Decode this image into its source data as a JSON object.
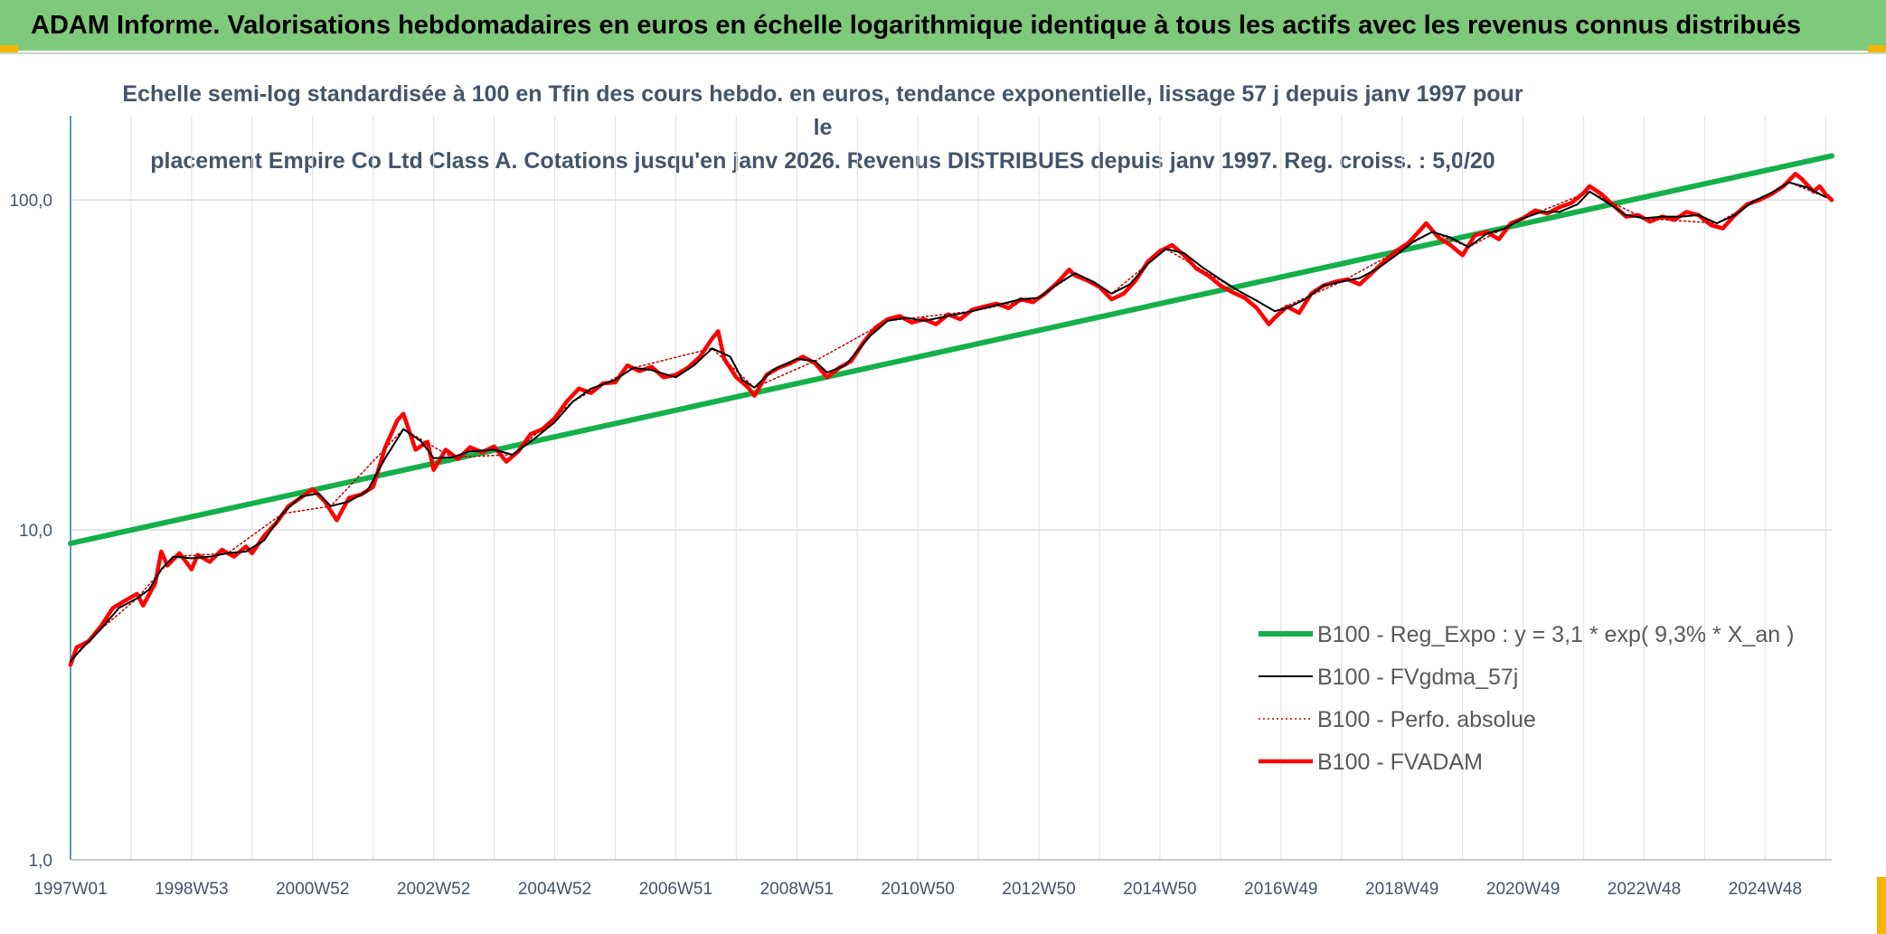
{
  "header": {
    "title": "ADAM Informe. Valorisations hebdomadaires en euros en échelle logarithmique identique à tous les actifs avec les revenus connus distribués"
  },
  "chart_data": {
    "type": "line",
    "subtitle_lines": [
      "Echelle semi-log standardisée à 100 en Tfin des cours hebdo. en euros, tendance exponentielle, lissage 57 j depuis janv 1997 pour le",
      "placement Empire Co Ltd Class A. Cotations jusqu'en janv 2026. Revenus DISTRIBUES depuis janv 1997. Reg. croiss. : 5,0/20"
    ],
    "y_scale": "log",
    "ylim": [
      1,
      180
    ],
    "y_ticks": [
      "1,0",
      "10,0",
      "100,0"
    ],
    "y_tick_values": [
      1,
      10,
      100
    ],
    "xlim": [
      1997.0,
      2026.1
    ],
    "x_ticks": [
      "1997W01",
      "1998W53",
      "2000W52",
      "2002W52",
      "2004W52",
      "2006W51",
      "2008W51",
      "2010W50",
      "2012W50",
      "2014W50",
      "2016W49",
      "2018W49",
      "2020W49",
      "2022W48",
      "2024W48"
    ],
    "x_tick_values": [
      1997.0,
      1999.0,
      2001.0,
      2003.0,
      2005.0,
      2007.0,
      2009.0,
      2011.0,
      2013.0,
      2015.0,
      2017.0,
      2019.0,
      2021.0,
      2023.0,
      2025.0
    ],
    "grid": true,
    "legend_placement": "bottom-right",
    "series": [
      {
        "name": "B100 - Reg_Expo : y = 3,1 * exp( 9,3% *  X_an )",
        "color": "#14b04a",
        "style": "solid-thick",
        "points": [
          [
            1997.0,
            9.1
          ],
          [
            2026.1,
            136
          ]
        ]
      },
      {
        "name": "B100 - FVgdma_57j",
        "color": "#000000",
        "style": "solid-thin",
        "points": [
          [
            1997.0,
            4.0
          ],
          [
            1997.2,
            4.4
          ],
          [
            1997.5,
            5.0
          ],
          [
            1997.8,
            5.8
          ],
          [
            1998.1,
            6.2
          ],
          [
            1998.3,
            6.6
          ],
          [
            1998.5,
            7.6
          ],
          [
            1998.7,
            8.3
          ],
          [
            1999.0,
            8.2
          ],
          [
            1999.3,
            8.3
          ],
          [
            1999.6,
            8.5
          ],
          [
            1999.9,
            8.6
          ],
          [
            2000.2,
            9.3
          ],
          [
            2000.5,
            11.2
          ],
          [
            2000.8,
            12.6
          ],
          [
            2001.1,
            12.9
          ],
          [
            2001.3,
            11.8
          ],
          [
            2001.6,
            12.2
          ],
          [
            2001.9,
            13.1
          ],
          [
            2002.2,
            16.5
          ],
          [
            2002.5,
            20.2
          ],
          [
            2002.8,
            18.5
          ],
          [
            2003.0,
            16.5
          ],
          [
            2003.3,
            16.6
          ],
          [
            2003.6,
            17.3
          ],
          [
            2004.0,
            17.5
          ],
          [
            2004.3,
            16.9
          ],
          [
            2004.6,
            18.5
          ],
          [
            2005.0,
            21.2
          ],
          [
            2005.3,
            24.5
          ],
          [
            2005.6,
            26.8
          ],
          [
            2006.0,
            28.5
          ],
          [
            2006.3,
            31.0
          ],
          [
            2006.6,
            30.5
          ],
          [
            2007.0,
            29.0
          ],
          [
            2007.3,
            31.5
          ],
          [
            2007.6,
            35.5
          ],
          [
            2007.9,
            33.5
          ],
          [
            2008.1,
            28.5
          ],
          [
            2008.3,
            27.0
          ],
          [
            2008.6,
            30.5
          ],
          [
            2009.0,
            33.0
          ],
          [
            2009.3,
            32.5
          ],
          [
            2009.5,
            30.0
          ],
          [
            2009.8,
            31.5
          ],
          [
            2010.2,
            38.5
          ],
          [
            2010.5,
            43.0
          ],
          [
            2010.8,
            44.0
          ],
          [
            2011.1,
            43.0
          ],
          [
            2011.5,
            44.5
          ],
          [
            2011.9,
            46.0
          ],
          [
            2012.3,
            48.0
          ],
          [
            2012.7,
            50.0
          ],
          [
            2013.0,
            50.5
          ],
          [
            2013.3,
            55.5
          ],
          [
            2013.6,
            60.0
          ],
          [
            2013.9,
            56.5
          ],
          [
            2014.2,
            52.0
          ],
          [
            2014.5,
            55.5
          ],
          [
            2014.8,
            64.0
          ],
          [
            2015.1,
            71.0
          ],
          [
            2015.4,
            69.0
          ],
          [
            2015.7,
            62.5
          ],
          [
            2016.0,
            57.5
          ],
          [
            2016.3,
            53.0
          ],
          [
            2016.6,
            49.5
          ],
          [
            2016.9,
            46.0
          ],
          [
            2017.1,
            47.0
          ],
          [
            2017.4,
            50.0
          ],
          [
            2017.7,
            55.0
          ],
          [
            2018.0,
            56.5
          ],
          [
            2018.3,
            58.0
          ],
          [
            2018.6,
            62.0
          ],
          [
            2018.9,
            68.0
          ],
          [
            2019.2,
            75.0
          ],
          [
            2019.5,
            80.0
          ],
          [
            2019.8,
            77.0
          ],
          [
            2020.1,
            72.0
          ],
          [
            2020.4,
            79.0
          ],
          [
            2020.7,
            82.0
          ],
          [
            2021.0,
            88.0
          ],
          [
            2021.3,
            92.0
          ],
          [
            2021.6,
            92.0
          ],
          [
            2021.9,
            97.0
          ],
          [
            2022.1,
            106.0
          ],
          [
            2022.4,
            98.0
          ],
          [
            2022.7,
            90.0
          ],
          [
            2023.0,
            88.0
          ],
          [
            2023.3,
            89.0
          ],
          [
            2023.6,
            89.0
          ],
          [
            2023.9,
            90.0
          ],
          [
            2024.2,
            85.0
          ],
          [
            2024.5,
            90.0
          ],
          [
            2024.8,
            99.0
          ],
          [
            2025.1,
            105.0
          ],
          [
            2025.4,
            113.0
          ],
          [
            2025.7,
            109.0
          ],
          [
            2026.0,
            102.0
          ]
        ]
      },
      {
        "name": "B100 - Perfo. absolue",
        "color": "#c00000",
        "style": "dotted",
        "points": [
          [
            1997.0,
            4.0
          ],
          [
            1997.5,
            5.0
          ],
          [
            1998.1,
            6.2
          ],
          [
            1998.7,
            8.3
          ],
          [
            1999.6,
            8.5
          ],
          [
            2000.5,
            11.2
          ],
          [
            2001.3,
            11.8
          ],
          [
            2002.5,
            20.2
          ],
          [
            2003.3,
            16.6
          ],
          [
            2004.3,
            16.9
          ],
          [
            2005.3,
            24.5
          ],
          [
            2006.3,
            31.0
          ],
          [
            2007.6,
            35.5
          ],
          [
            2008.3,
            27.0
          ],
          [
            2009.3,
            32.5
          ],
          [
            2010.5,
            43.0
          ],
          [
            2011.9,
            46.0
          ],
          [
            2013.0,
            50.5
          ],
          [
            2013.6,
            60.0
          ],
          [
            2014.2,
            52.0
          ],
          [
            2015.1,
            71.0
          ],
          [
            2016.3,
            53.0
          ],
          [
            2016.9,
            46.0
          ],
          [
            2018.0,
            56.5
          ],
          [
            2019.5,
            80.0
          ],
          [
            2020.1,
            72.0
          ],
          [
            2021.0,
            88.0
          ],
          [
            2022.1,
            106.0
          ],
          [
            2023.0,
            88.0
          ],
          [
            2024.2,
            85.0
          ],
          [
            2025.4,
            113.0
          ],
          [
            2026.0,
            102.0
          ]
        ]
      },
      {
        "name": "B100 - FVADAM",
        "color": "#ff0000",
        "style": "solid-thick",
        "points": [
          [
            1997.0,
            3.9
          ],
          [
            1997.1,
            4.4
          ],
          [
            1997.3,
            4.6
          ],
          [
            1997.5,
            5.1
          ],
          [
            1997.7,
            5.8
          ],
          [
            1997.9,
            6.1
          ],
          [
            1998.1,
            6.4
          ],
          [
            1998.2,
            5.9
          ],
          [
            1998.4,
            6.9
          ],
          [
            1998.5,
            8.6
          ],
          [
            1998.6,
            7.8
          ],
          [
            1998.8,
            8.5
          ],
          [
            1999.0,
            7.6
          ],
          [
            1999.1,
            8.4
          ],
          [
            1999.3,
            8.0
          ],
          [
            1999.5,
            8.7
          ],
          [
            1999.7,
            8.3
          ],
          [
            1999.9,
            8.9
          ],
          [
            2000.0,
            8.5
          ],
          [
            2000.2,
            9.6
          ],
          [
            2000.4,
            10.5
          ],
          [
            2000.6,
            11.8
          ],
          [
            2000.8,
            12.5
          ],
          [
            2001.0,
            13.3
          ],
          [
            2001.2,
            12.2
          ],
          [
            2001.4,
            10.7
          ],
          [
            2001.6,
            12.5
          ],
          [
            2001.8,
            12.8
          ],
          [
            2002.0,
            13.5
          ],
          [
            2002.2,
            17.8
          ],
          [
            2002.4,
            21.5
          ],
          [
            2002.5,
            22.5
          ],
          [
            2002.7,
            17.5
          ],
          [
            2002.9,
            18.5
          ],
          [
            2003.0,
            15.2
          ],
          [
            2003.2,
            17.5
          ],
          [
            2003.4,
            16.4
          ],
          [
            2003.6,
            17.8
          ],
          [
            2003.8,
            17.2
          ],
          [
            2004.0,
            17.9
          ],
          [
            2004.2,
            16.1
          ],
          [
            2004.4,
            17.3
          ],
          [
            2004.6,
            19.5
          ],
          [
            2004.8,
            20.2
          ],
          [
            2005.0,
            21.8
          ],
          [
            2005.2,
            24.5
          ],
          [
            2005.4,
            26.8
          ],
          [
            2005.6,
            26.0
          ],
          [
            2005.8,
            27.8
          ],
          [
            2006.0,
            28.0
          ],
          [
            2006.2,
            31.5
          ],
          [
            2006.4,
            30.3
          ],
          [
            2006.6,
            31.2
          ],
          [
            2006.8,
            29.0
          ],
          [
            2007.0,
            29.5
          ],
          [
            2007.2,
            31.0
          ],
          [
            2007.4,
            33.5
          ],
          [
            2007.6,
            38.0
          ],
          [
            2007.7,
            40.0
          ],
          [
            2007.8,
            33.0
          ],
          [
            2008.0,
            29.0
          ],
          [
            2008.2,
            27.0
          ],
          [
            2008.3,
            25.5
          ],
          [
            2008.5,
            29.5
          ],
          [
            2008.7,
            31.0
          ],
          [
            2008.9,
            32.0
          ],
          [
            2009.1,
            33.5
          ],
          [
            2009.3,
            32.0
          ],
          [
            2009.5,
            29.0
          ],
          [
            2009.7,
            31.0
          ],
          [
            2009.9,
            32.5
          ],
          [
            2010.1,
            37.0
          ],
          [
            2010.3,
            41.0
          ],
          [
            2010.5,
            43.5
          ],
          [
            2010.7,
            44.5
          ],
          [
            2010.9,
            42.5
          ],
          [
            2011.1,
            43.5
          ],
          [
            2011.3,
            42.0
          ],
          [
            2011.5,
            45.0
          ],
          [
            2011.7,
            43.5
          ],
          [
            2011.9,
            46.5
          ],
          [
            2012.1,
            47.5
          ],
          [
            2012.3,
            48.5
          ],
          [
            2012.5,
            47.0
          ],
          [
            2012.7,
            50.0
          ],
          [
            2012.9,
            49.0
          ],
          [
            2013.1,
            52.0
          ],
          [
            2013.3,
            56.0
          ],
          [
            2013.5,
            61.5
          ],
          [
            2013.6,
            59.0
          ],
          [
            2013.8,
            57.0
          ],
          [
            2014.0,
            54.5
          ],
          [
            2014.2,
            50.0
          ],
          [
            2014.4,
            52.0
          ],
          [
            2014.6,
            57.0
          ],
          [
            2014.8,
            65.0
          ],
          [
            2015.0,
            70.0
          ],
          [
            2015.2,
            73.0
          ],
          [
            2015.4,
            68.0
          ],
          [
            2015.6,
            62.0
          ],
          [
            2015.8,
            59.0
          ],
          [
            2016.0,
            55.0
          ],
          [
            2016.2,
            52.5
          ],
          [
            2016.4,
            50.5
          ],
          [
            2016.6,
            47.0
          ],
          [
            2016.8,
            42.0
          ],
          [
            2016.9,
            44.0
          ],
          [
            2017.1,
            47.5
          ],
          [
            2017.3,
            45.5
          ],
          [
            2017.5,
            52.0
          ],
          [
            2017.7,
            55.0
          ],
          [
            2017.9,
            56.5
          ],
          [
            2018.1,
            57.5
          ],
          [
            2018.3,
            55.5
          ],
          [
            2018.5,
            60.0
          ],
          [
            2018.7,
            65.0
          ],
          [
            2018.9,
            70.0
          ],
          [
            2019.1,
            74.0
          ],
          [
            2019.3,
            81.0
          ],
          [
            2019.4,
            85.0
          ],
          [
            2019.6,
            77.0
          ],
          [
            2019.8,
            73.0
          ],
          [
            2020.0,
            68.0
          ],
          [
            2020.2,
            78.0
          ],
          [
            2020.4,
            80.0
          ],
          [
            2020.6,
            76.0
          ],
          [
            2020.8,
            85.0
          ],
          [
            2021.0,
            88.0
          ],
          [
            2021.2,
            93.0
          ],
          [
            2021.4,
            91.0
          ],
          [
            2021.6,
            95.0
          ],
          [
            2021.8,
            98.0
          ],
          [
            2022.0,
            105.0
          ],
          [
            2022.1,
            110.0
          ],
          [
            2022.3,
            104.0
          ],
          [
            2022.5,
            96.0
          ],
          [
            2022.7,
            89.0
          ],
          [
            2022.9,
            90.0
          ],
          [
            2023.1,
            86.0
          ],
          [
            2023.3,
            89.0
          ],
          [
            2023.5,
            87.0
          ],
          [
            2023.7,
            92.0
          ],
          [
            2023.9,
            90.0
          ],
          [
            2024.1,
            84.0
          ],
          [
            2024.3,
            82.0
          ],
          [
            2024.5,
            90.0
          ],
          [
            2024.7,
            97.0
          ],
          [
            2024.9,
            100.0
          ],
          [
            2025.1,
            104.0
          ],
          [
            2025.3,
            110.0
          ],
          [
            2025.5,
            120.0
          ],
          [
            2025.6,
            116.0
          ],
          [
            2025.8,
            106.0
          ],
          [
            2025.9,
            110.0
          ],
          [
            2026.0,
            104.0
          ],
          [
            2026.1,
            100.0
          ]
        ]
      }
    ]
  }
}
